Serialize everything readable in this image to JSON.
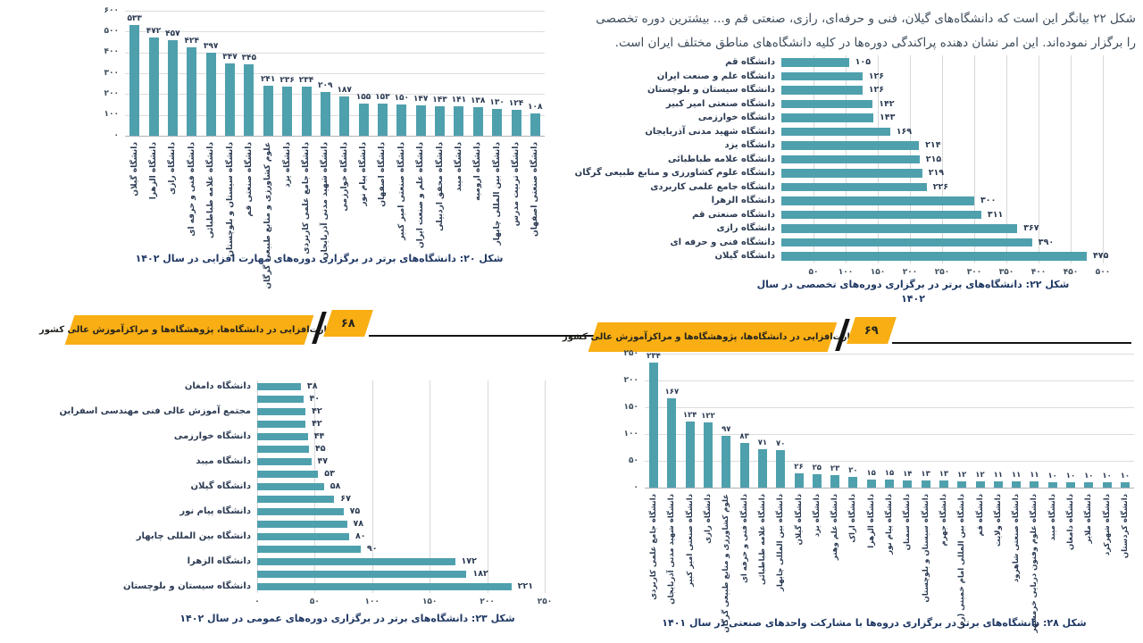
{
  "intro_text": "شکل ۲۲ بیانگر این است که دانشگاه‌های گیلان، فنی و حرفه‌ای، رازی، صنعتی قم و... بیشترین دوره تخصصی را برگزار نموده‌اند. این امر نشان دهنده پراکندگی دوره‌ها در کلیه دانشگاه‌های مناطق مختلف ایران است.",
  "banners": {
    "left": {
      "title": "مهارت‌افزایی در دانشگاه‌ها، پژوهشگاه‌ها و مراکزآموزش عالی کشور",
      "page_number": "۶۸"
    },
    "right": {
      "title": "مهارت‌افزایی در دانشگاه‌ها، پژوهشگاه‌ها و مراکزآموزش عالی کشور",
      "page_number": "۶۹"
    }
  },
  "chart_data": [
    {
      "id": "fig20",
      "type": "bar",
      "orientation": "vertical",
      "caption": "شکل ۲۰: دانشگاه‌های برتر در برگزاری دوره‌های مهارت افزایی در سال ۱۴۰۲",
      "categories": [
        "دانشگاه گیلان",
        "دانشگاه الزهرا",
        "دانشگاه رازی",
        "دانشگاه فنی و حرفه ای",
        "دانشگاه علامه طباطبائی",
        "دانشگاه سیستان و بلوچستان",
        "دانشگاه صنعتی قم",
        "علوم کشاورزی و منابع طبیعی گرگان",
        "دانشگاه یزد",
        "دانشگاه جامع علمی کاربردی",
        "دانشگاه شهید مدنی آذربایجان",
        "دانشگاه خوارزمی",
        "دانشگاه پیام نور",
        "دانشگاه اصفهان",
        "دانشگاه صنعتی امیر کبیر",
        "دانشگاه علم و صنعت ایران",
        "دانشگاه محقق اردبیلی",
        "دانشگاه میبد",
        "دانشگاه ارومیه",
        "دانشگاه بین المللی چابهار",
        "دانشگاه تربیت مدرس",
        "دانشگاه صنعتی اصفهان"
      ],
      "values": [
        533,
        472,
        457,
        424,
        397,
        347,
        345,
        241,
        236,
        234,
        209,
        187,
        155,
        153,
        150,
        147,
        143,
        141,
        138,
        130,
        124,
        108
      ],
      "ylim": [
        0,
        600
      ],
      "yticks": [
        0,
        100,
        200,
        300,
        400,
        500,
        600
      ],
      "grid": true,
      "bar_color": "#4fa0ad"
    },
    {
      "id": "fig22",
      "type": "bar",
      "orientation": "horizontal",
      "caption_lines": [
        "شکل ۲۲: دانشگاه‌های برتر در برگزاری دوره‌های تخصصی در سال",
        "۱۴۰۲"
      ],
      "categories": [
        "دانشگاه قم",
        "دانشگاه علم و صنعت ایران",
        "دانشگاه سیستان و بلوچستان",
        "دانشگاه صنعتی امیر کبیر",
        "دانشگاه خوارزمی",
        "دانشگاه شهید مدنی آذربایجان",
        "دانشگاه یزد",
        "دانشگاه علامه طباطبائی",
        "دانشگاه علوم کشاورزی و منابع طبیعی گرگان",
        "دانشگاه جامع علمی کاربردی",
        "دانشگاه الزهرا",
        "دانشگاه صنعتی قم",
        "دانشگاه رازی",
        "دانشگاه فنی و حرفه ای",
        "دانشگاه گیلان"
      ],
      "values": [
        105,
        126,
        126,
        142,
        143,
        169,
        214,
        215,
        219,
        226,
        300,
        311,
        367,
        390,
        475
      ],
      "xlim": [
        0,
        500
      ],
      "xticks": [
        50,
        100,
        150,
        200,
        250,
        300,
        350,
        400,
        450,
        500
      ],
      "grid": true,
      "bar_color": "#4fa0ad"
    },
    {
      "id": "fig23",
      "type": "bar",
      "orientation": "horizontal",
      "caption": "شکل ۲۳: دانشگاه‌های برتر در برگزاری دوره‌های عمومی در سال ۱۴۰۲",
      "categories": [
        "دانشگاه دامغان",
        "",
        "مجتمع آموزش عالی فنی مهندسی اسفراین",
        "",
        "دانشگاه خوارزمی",
        "",
        "دانشگاه میبد",
        "",
        "دانشگاه گیلان",
        "",
        "دانشگاه پیام نور",
        "",
        "دانشگاه بین المللی چابهار",
        "",
        "دانشگاه الزهرا",
        "",
        "دانشگاه سیستان و بلوچستان"
      ],
      "values": [
        38,
        40,
        42,
        42,
        44,
        45,
        47,
        53,
        58,
        67,
        75,
        78,
        80,
        90,
        172,
        182,
        221
      ],
      "xlim": [
        0,
        250
      ],
      "xticks": [
        0,
        50,
        100,
        150,
        200,
        250
      ],
      "grid": true,
      "bar_color": "#4fa0ad"
    },
    {
      "id": "fig28",
      "type": "bar",
      "orientation": "vertical",
      "caption": "شکل ۲۸: دانشگاه‌های برتر در برگزاری دروه‌ها با مشارکت واحدهای صنعتی در سال ۱۴۰۱",
      "categories": [
        "دانشگاه جامع علمی کاربردی",
        "دانشگاه شهید مدنی آذربایجان",
        "دانشگاه صنعتی امیر کبیر",
        "دانشگاه رازی",
        "علوم کشاورزی و منابع طبیعی گرگان",
        "دانشگاه فنی و حرفه ای",
        "دانشگاه علامه طباطبائی",
        "دانشگاه بین المللی چابهار",
        "دانشگاه گیلان",
        "دانشگاه یزد",
        "دانشگاه علم وهنر",
        "دانشگاه اراک",
        "دانشگاه الزهرا",
        "دانشگاه پیام نور",
        "دانشگاه سمنان",
        "دانشگاه سیستان و بلوچستان",
        "دانشگاه جهرم",
        "دانشگاه بین المللی امام خمینی (ره)",
        "دانشگاه قم",
        "دانشگاه ولایت",
        "دانشگاه صنعتی شاهرود",
        "دانشگاه علوم وفنون دریایی خرمشهر",
        "دانشگاه میبد",
        "دانشگاه دامغان",
        "دانشگاه ملایر",
        "دانشگاه شهرکرد",
        "دانشگاه کردستان"
      ],
      "values": [
        234,
        167,
        124,
        122,
        97,
        83,
        71,
        70,
        26,
        25,
        23,
        20,
        15,
        15,
        14,
        13,
        13,
        12,
        12,
        11,
        11,
        11,
        10,
        10,
        10,
        10,
        10
      ],
      "ylim": [
        0,
        250
      ],
      "yticks": [
        0,
        50,
        100,
        150,
        200,
        250
      ],
      "grid": true,
      "bar_color": "#4fa0ad"
    }
  ]
}
